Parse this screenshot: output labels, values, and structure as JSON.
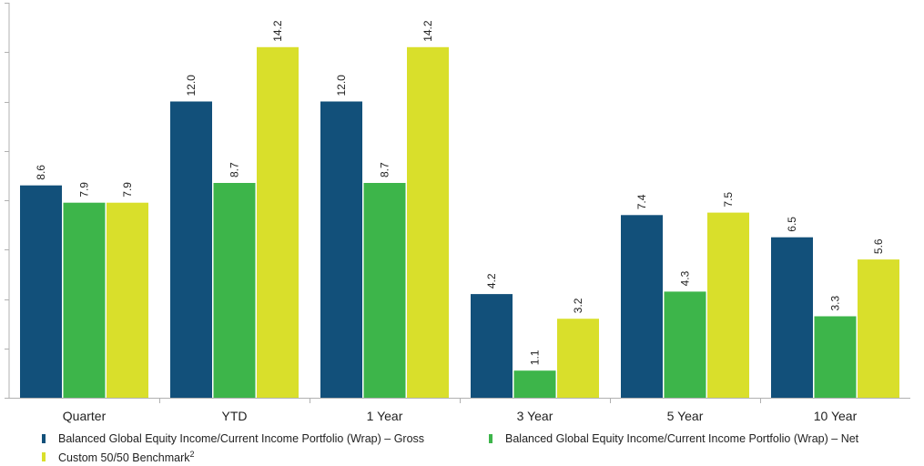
{
  "chart_data": {
    "type": "bar",
    "categories": [
      "Quarter",
      "YTD",
      "1 Year",
      "3 Year",
      "5 Year",
      "10 Year"
    ],
    "series": [
      {
        "name": "Balanced Global Equity Income/Current Income Portfolio (Wrap) – Gross",
        "color": "#12507a",
        "values": [
          8.6,
          12.0,
          12.0,
          4.2,
          7.4,
          6.5
        ]
      },
      {
        "name": "Balanced Global Equity Income/Current Income Portfolio (Wrap) – Net",
        "color": "#3db54a",
        "values": [
          7.9,
          8.7,
          8.7,
          1.1,
          4.3,
          3.3
        ]
      },
      {
        "name": "Custom 50/50 Benchmark",
        "superscript": "2",
        "color": "#d9df2b",
        "values": [
          7.9,
          14.2,
          14.2,
          3.2,
          7.5,
          5.6
        ]
      }
    ],
    "ylim": [
      0,
      16
    ],
    "grid": false,
    "legend_position": "bottom",
    "data_labels": true,
    "data_label_rotation": "vertical"
  }
}
